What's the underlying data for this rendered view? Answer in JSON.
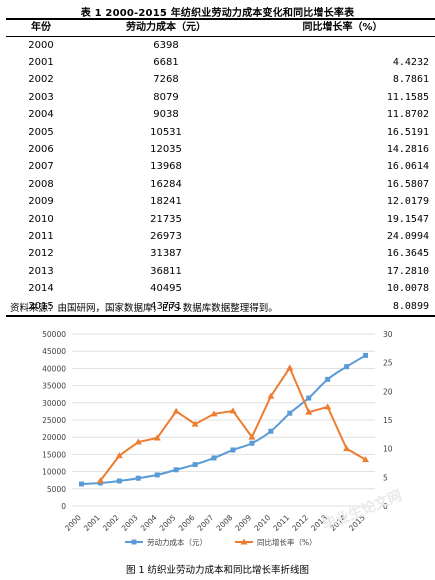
{
  "doc": {
    "table_title": "表 1 2000-2015 年纺织业劳动力成本变化和同比增长率表",
    "source_note": "资料来源：由国研网，国家数据库，EPS 数据库数据整理得到。",
    "figure_caption": "图 1 纺织业劳动力成本和同比增长率折线图",
    "watermark": "毕业生论文网"
  },
  "table": {
    "headers": [
      "年份",
      "劳动力成本（元）",
      "同比增长率（%）"
    ],
    "rows": [
      [
        "2000",
        "6398",
        ""
      ],
      [
        "2001",
        "6681",
        "4.4232"
      ],
      [
        "2002",
        "7268",
        "8.7861"
      ],
      [
        "2003",
        "8079",
        "11.1585"
      ],
      [
        "2004",
        "9038",
        "11.8702"
      ],
      [
        "2005",
        "10531",
        "16.5191"
      ],
      [
        "2006",
        "12035",
        "14.2816"
      ],
      [
        "2007",
        "13968",
        "16.0614"
      ],
      [
        "2008",
        "16284",
        "16.5807"
      ],
      [
        "2009",
        "18241",
        "12.0179"
      ],
      [
        "2010",
        "21735",
        "19.1547"
      ],
      [
        "2011",
        "26973",
        "24.0994"
      ],
      [
        "2012",
        "31387",
        "16.3645"
      ],
      [
        "2013",
        "36811",
        "17.2810"
      ],
      [
        "2014",
        "40495",
        "10.0078"
      ],
      [
        "2015",
        "43771",
        "8.0899"
      ]
    ]
  },
  "chart_data": {
    "type": "line",
    "categories": [
      "2000",
      "2001",
      "2002",
      "2003",
      "2004",
      "2005",
      "2006",
      "2007",
      "2008",
      "2009",
      "2010",
      "2011",
      "2012",
      "2013",
      "2014",
      "2015"
    ],
    "series": [
      {
        "name": "劳动力成本（元）",
        "axis": "left",
        "color": "#5b9bd5",
        "marker": "square",
        "values": [
          6398,
          6681,
          7268,
          8079,
          9038,
          10531,
          12035,
          13968,
          16284,
          18241,
          21735,
          26973,
          31387,
          36811,
          40495,
          43771
        ]
      },
      {
        "name": "同比增长率（%）",
        "axis": "right",
        "color": "#ed7d31",
        "marker": "triangle",
        "values": [
          null,
          4.4232,
          8.7861,
          11.1585,
          11.8702,
          16.5191,
          14.2816,
          16.0614,
          16.5807,
          12.0179,
          19.1547,
          24.0994,
          16.3645,
          17.281,
          10.0078,
          8.0899
        ]
      }
    ],
    "y_left": {
      "range": [
        0,
        50000
      ],
      "ticks": [
        "0",
        "5000",
        "10000",
        "15000",
        "20000",
        "25000",
        "30000",
        "35000",
        "40000",
        "45000",
        "50000"
      ]
    },
    "y_right": {
      "range": [
        0,
        30
      ],
      "ticks": [
        "0",
        "5",
        "10",
        "15",
        "20",
        "25",
        "30"
      ]
    },
    "grid": true,
    "legend_position": "bottom"
  }
}
